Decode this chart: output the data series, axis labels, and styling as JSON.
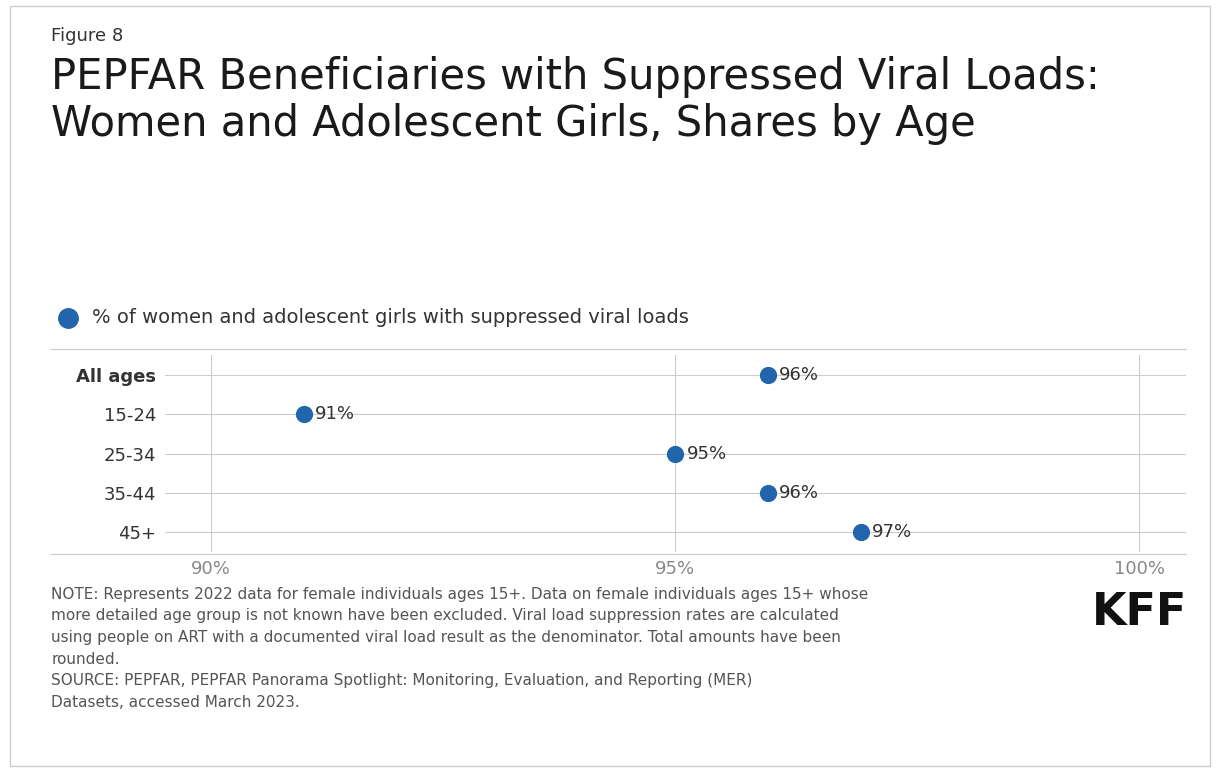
{
  "figure_label": "Figure 8",
  "title": "PEPFAR Beneficiaries with Suppressed Viral Loads:\nWomen and Adolescent Girls, Shares by Age",
  "legend_label": "% of women and adolescent girls with suppressed viral loads",
  "categories": [
    "All ages",
    "15-24",
    "25-34",
    "35-44",
    "45+"
  ],
  "values": [
    96,
    91,
    95,
    96,
    97
  ],
  "dot_labels": [
    "96%",
    "91%",
    "95%",
    "96%",
    "97%"
  ],
  "dot_color": "#2166ac",
  "xlim": [
    89.5,
    100.5
  ],
  "xticks": [
    90,
    95,
    100
  ],
  "xtick_labels": [
    "90%",
    "95%",
    "100%"
  ],
  "background_color": "#ffffff",
  "border_color": "#cccccc",
  "note_text": "NOTE: Represents 2022 data for female individuals ages 15+. Data on female individuals ages 15+ whose\nmore detailed age group is not known have been excluded. Viral load suppression rates are calculated\nusing people on ART with a documented viral load result as the denominator. Total amounts have been\nrounded.\nSOURCE: PEPFAR, PEPFAR Panorama Spotlight: Monitoring, Evaluation, and Reporting (MER)\nDatasets, accessed March 2023.",
  "kff_text": "KFF",
  "title_fontsize": 30,
  "figure_label_fontsize": 13,
  "legend_fontsize": 14,
  "category_fontsize": 13,
  "tick_label_fontsize": 13,
  "dot_label_fontsize": 13,
  "note_fontsize": 11,
  "kff_fontsize": 32,
  "dot_size": 130
}
